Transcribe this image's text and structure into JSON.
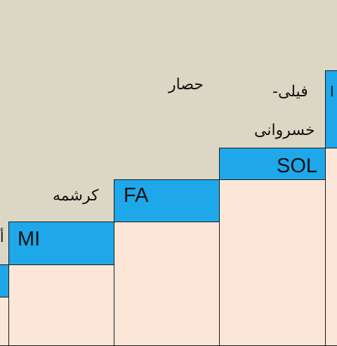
{
  "steps": [
    {
      "label": "",
      "color_band": "#1ea8ea",
      "color_body": "#fbe6d8"
    },
    {
      "label": "MI",
      "color_band": "#1ea8ea",
      "color_body": "#fbe6d8"
    },
    {
      "label": "FA",
      "color_band": "#1ea8ea",
      "color_body": "#fbe6d8"
    },
    {
      "label": "SOL",
      "color_band": "#1ea8ea",
      "color_body": "#fbe6d8"
    },
    {
      "label": "",
      "color_band": "#1ea8ea",
      "color_body": "#fbe6d8"
    }
  ],
  "annotations": {
    "mi_side": "أ",
    "fa_side": "كرشمه",
    "hesar": "حصار",
    "fili": "فيلى-",
    "khosravani": "خسروانى",
    "right_edge": "ا"
  },
  "colors": {
    "background": "#dcd7c5",
    "band": "#1ea8ea",
    "body": "#fbe6d8",
    "border": "#1a1a1a"
  }
}
